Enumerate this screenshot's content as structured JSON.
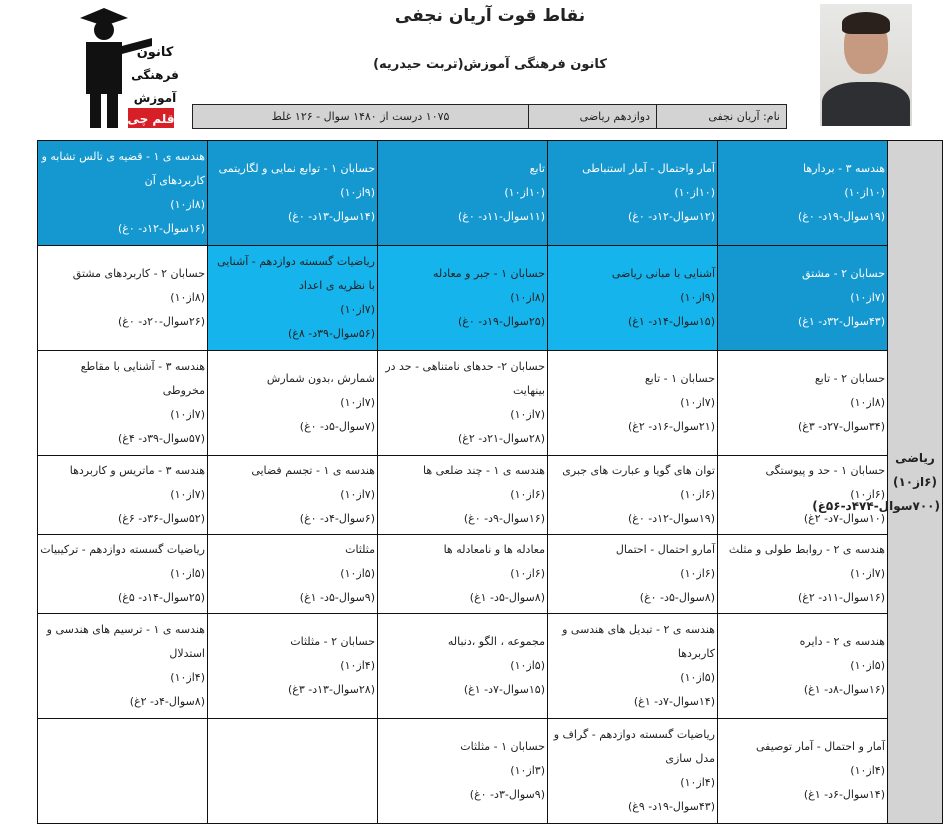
{
  "header": {
    "title": "نقاط قوت آریان نجفی",
    "subtitle": "کانون فرهنگی آموزش(تربت حیدریه)",
    "logo_text": "کانون فرهنگی آموزش قلم چی"
  },
  "info": {
    "name": "نام: آریان نجفی",
    "grade": "دوازدهم ریاضی",
    "result": "۱۰۷۵ درست از ۱۴۸۰ سوال - ۱۲۶ غلط"
  },
  "colors": {
    "dark": "#1598d0",
    "light": "#16b4ec",
    "summary": "#d3d3d3"
  },
  "summary": {
    "subject": "ریاضی (۶از۱۰)",
    "stats": "(۷۰۰سوال-۴۷۴د-۵۶غ)"
  },
  "rows": [
    [
      {
        "title": "هندسه ۳ - بردارها",
        "score": "(۱۰از۱۰)",
        "stats": "(۱۹سوال-۱۹د- ۰غ)",
        "style": "dark"
      },
      {
        "title": "آمار واحتمال - آمار استنباطی",
        "score": "(۱۰از۱۰)",
        "stats": "(۱۲سوال-۱۲د- ۰غ)",
        "style": "dark"
      },
      {
        "title": "تابع",
        "score": "(۱۰از۱۰)",
        "stats": "(۱۱سوال-۱۱د- ۰غ)",
        "style": "dark"
      },
      {
        "title": "حسابان ۱ - توابع نمایی و لگاریتمی",
        "score": "(۹از۱۰)",
        "stats": "(۱۴سوال-۱۳د- ۰غ)",
        "style": "dark"
      },
      {
        "title": "هندسه ی ۱ - قضیه ی تالس تشابه و کاربردهای آن",
        "score": "(۸از۱۰)",
        "stats": "(۱۶سوال-۱۲د- ۰غ)",
        "style": "dark"
      }
    ],
    [
      {
        "title": "حسابان ۲ - مشتق",
        "score": "(۷از۱۰)",
        "stats": "(۴۳سوال-۳۲د- ۱غ)",
        "style": "dark"
      },
      {
        "title": "آشنایی با مبانی ریاضی",
        "score": "(۹از۱۰)",
        "stats": "(۱۵سوال-۱۴د- ۱غ)",
        "style": "light"
      },
      {
        "title": "حسابان ۱ - جبر و معادله",
        "score": "(۸از۱۰)",
        "stats": "(۲۵سوال-۱۹د- ۰غ)",
        "style": "light"
      },
      {
        "title": "ریاضیات گسسته دوازدهم - آشنایی با نظریه ی اعداد",
        "score": "(۷از۱۰)",
        "stats": "(۵۶سوال-۳۹د- ۸غ)",
        "style": "light"
      },
      {
        "title": "حسابان ۲ - کاربردهای مشتق",
        "score": "(۸از۱۰)",
        "stats": "(۲۶سوال-۲۰د- ۰غ)",
        "style": "white"
      }
    ],
    [
      {
        "title": "حسابان ۲ - تابع",
        "score": "(۸از۱۰)",
        "stats": "(۳۴سوال-۲۷د- ۳غ)",
        "style": "white"
      },
      {
        "title": "حسابان ۱ - تابع",
        "score": "(۷از۱۰)",
        "stats": "(۲۱سوال-۱۶د- ۲غ)",
        "style": "white"
      },
      {
        "title": "حسابان ۲- حدهای نامتناهی - حد در بینهایت",
        "score": "(۷از۱۰)",
        "stats": "(۲۸سوال-۲۱د- ۲غ)",
        "style": "white"
      },
      {
        "title": "شمارش ،بدون شمارش",
        "score": "(۷از۱۰)",
        "stats": "(۷سوال-۵د- ۰غ)",
        "style": "white"
      },
      {
        "title": "هندسه ۳ - آشنایی با مقاطع مخروطی",
        "score": "(۷از۱۰)",
        "stats": "(۵۷سوال-۳۹د- ۴غ)",
        "style": "white"
      }
    ],
    [
      {
        "title": "حسابان ۱ - حد و پیوستگی",
        "score": "(۶از۱۰)",
        "stats": "(۱۰سوال-۷د- ۲غ)",
        "style": "white"
      },
      {
        "title": "توان های گویا و عبارت های جبری",
        "score": "(۶از۱۰)",
        "stats": "(۱۹سوال-۱۲د- ۰غ)",
        "style": "white"
      },
      {
        "title": "هندسه ی ۱ - چند ضلعی ها",
        "score": "(۶از۱۰)",
        "stats": "(۱۶سوال-۹د- ۰غ)",
        "style": "white"
      },
      {
        "title": "هندسه ی ۱ - تجسم فضایی",
        "score": "(۷از۱۰)",
        "stats": "(۶سوال-۴د- ۰غ)",
        "style": "white"
      },
      {
        "title": "هندسه ۳ - ماتریس و کاربردها",
        "score": "(۷از۱۰)",
        "stats": "(۵۲سوال-۳۶د- ۶غ)",
        "style": "white"
      }
    ],
    [
      {
        "title": "هندسه ی ۲ - روابط طولی و مثلث",
        "score": "(۷از۱۰)",
        "stats": "(۱۶سوال-۱۱د- ۲غ)",
        "style": "white"
      },
      {
        "title": "آمارو احتمال - احتمال",
        "score": "(۶از۱۰)",
        "stats": "(۸سوال-۵د- ۰غ)",
        "style": "white"
      },
      {
        "title": "معادله ها و نامعادله ها",
        "score": "(۶از۱۰)",
        "stats": "(۸سوال-۵د- ۱غ)",
        "style": "white"
      },
      {
        "title": "مثلثات",
        "score": "(۵از۱۰)",
        "stats": "(۹سوال-۵د- ۱غ)",
        "style": "white"
      },
      {
        "title": "ریاضیات گسسته دوازدهم - ترکیبیات",
        "score": "(۵از۱۰)",
        "stats": "(۲۵سوال-۱۴د- ۵غ)",
        "style": "white"
      }
    ],
    [
      {
        "title": "هندسه ی ۲ - دایره",
        "score": "(۵از۱۰)",
        "stats": "(۱۶سوال-۸د- ۱غ)",
        "style": "white"
      },
      {
        "title": "هندسه ی ۲ - تبدیل های هندسی و کاربردها",
        "score": "(۵از۱۰)",
        "stats": "(۱۴سوال-۷د- ۱غ)",
        "style": "white"
      },
      {
        "title": "مجموعه ، الگو ،دنباله",
        "score": "(۵از۱۰)",
        "stats": "(۱۵سوال-۷د- ۱غ)",
        "style": "white"
      },
      {
        "title": "حسابان ۲ - مثلثات",
        "score": "(۴از۱۰)",
        "stats": "(۲۸سوال-۱۳د- ۳غ)",
        "style": "white"
      },
      {
        "title": "هندسه ی ۱ - ترسیم های هندسی و استدلال",
        "score": "(۴از۱۰)",
        "stats": "(۸سوال-۴د- ۲غ)",
        "style": "white"
      }
    ],
    [
      {
        "title": "آمار و احتمال - آمار توصیفی",
        "score": "(۴از۱۰)",
        "stats": "(۱۴سوال-۶د- ۱غ)",
        "style": "white"
      },
      {
        "title": "ریاضیات گسسته دوازدهم - گراف و مدل سازی",
        "score": "(۴از۱۰)",
        "stats": "(۴۳سوال-۱۹د- ۹غ)",
        "style": "white"
      },
      {
        "title": "حسابان ۱ - مثلثات",
        "score": "(۳از۱۰)",
        "stats": "(۹سوال-۳د- ۰غ)",
        "style": "white"
      },
      null,
      null
    ]
  ]
}
